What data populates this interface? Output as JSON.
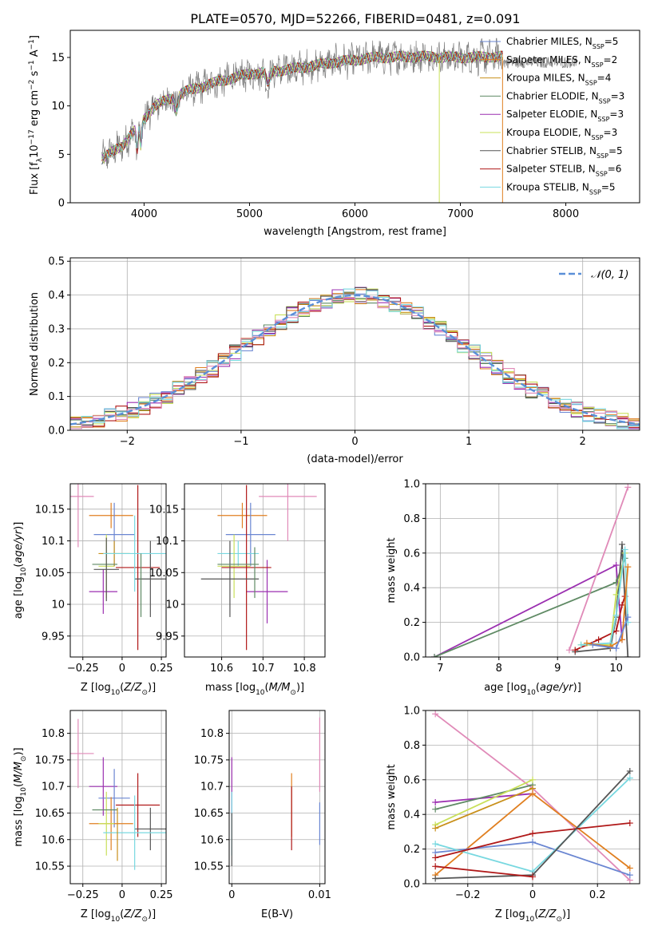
{
  "figure": {
    "title": "PLATE=0570, MJD=52266, FIBERID=0481, z=0.091"
  },
  "colors": {
    "chabrier_miles": "#6a86d2",
    "salpeter_miles": "#e07f20",
    "kroupa_miles": "#c8901a",
    "chabrier_elodie": "#5f8a64",
    "salpeter_elodie": "#9b2fb0",
    "kroupa_elodie": "#c9e05a",
    "chabrier_stelib": "#555555",
    "salpeter_stelib": "#b01818",
    "kroupa_stelib": "#78d8e0",
    "normal": "#5a8fd8",
    "salpeter_extra": "#e08ab8",
    "data": "#808080"
  },
  "chart_data": [
    {
      "id": "spectrum",
      "type": "line",
      "title": "PLATE=0570, MJD=52266, FIBERID=0481, z=0.091",
      "xlabel": "wavelength [Angstrom, rest frame]",
      "ylabel": "Flux [f_λ 10^-17 erg cm^-2 s^-1 A^-1]",
      "xlim": [
        3300,
        8700
      ],
      "ylim": [
        0,
        17.8
      ],
      "xticks": [
        4000,
        5000,
        6000,
        7000,
        8000
      ],
      "yticks": [
        0,
        5,
        10,
        15
      ],
      "grid": false,
      "legend_position": "right",
      "legend": [
        {
          "base": "Chabrier MILES, N",
          "sub": "SSP",
          "tail": "=5",
          "color_key": "chabrier_miles"
        },
        {
          "base": "Salpeter MILES, N",
          "sub": "SSP",
          "tail": "=2",
          "color_key": "salpeter_miles"
        },
        {
          "base": "Kroupa MILES, N",
          "sub": "SSP",
          "tail": "=4",
          "color_key": "kroupa_miles"
        },
        {
          "base": "Chabrier ELODIE, N",
          "sub": "SSP",
          "tail": "=3",
          "color_key": "chabrier_elodie"
        },
        {
          "base": "Salpeter ELODIE, N",
          "sub": "SSP",
          "tail": "=3",
          "color_key": "salpeter_elodie"
        },
        {
          "base": "Kroupa ELODIE, N",
          "sub": "SSP",
          "tail": "=3",
          "color_key": "kroupa_elodie"
        },
        {
          "base": "Chabrier STELIB, N",
          "sub": "SSP",
          "tail": "=5",
          "color_key": "chabrier_stelib"
        },
        {
          "base": "Salpeter STELIB, N",
          "sub": "SSP",
          "tail": "=6",
          "color_key": "salpeter_stelib"
        },
        {
          "base": "Kroupa STELIB, N",
          "sub": "SSP",
          "tail": "=5",
          "color_key": "kroupa_stelib"
        }
      ],
      "continuum": [
        [
          3600,
          4.5
        ],
        [
          3800,
          6.0
        ],
        [
          3950,
          8.0
        ],
        [
          4100,
          10.0
        ],
        [
          4400,
          11.5
        ],
        [
          4700,
          12.5
        ],
        [
          5000,
          13.3
        ],
        [
          5400,
          13.8
        ],
        [
          5800,
          14.5
        ],
        [
          6200,
          15.0
        ],
        [
          6600,
          15.1
        ],
        [
          7000,
          15.0
        ],
        [
          7400,
          15.1
        ]
      ],
      "data_range": [
        3600,
        8100
      ],
      "model_range": [
        3600,
        7400
      ],
      "dips": [
        [
          6800,
          0
        ],
        [
          7400,
          0
        ]
      ]
    },
    {
      "id": "residuals",
      "type": "line",
      "xlabel": "(data-model)/error",
      "ylabel": "Normed distribution",
      "xlim": [
        -2.5,
        2.5
      ],
      "ylim": [
        0,
        0.51
      ],
      "xticks": [
        -2,
        -1,
        0,
        1,
        2
      ],
      "yticks": [
        0.0,
        0.1,
        0.2,
        0.3,
        0.4,
        0.5
      ],
      "grid": true,
      "legend_position": "upper right",
      "normal_label": "𝒩(0, 1)",
      "bin_width": 0.1,
      "series_color_keys": [
        "chabrier_miles",
        "salpeter_miles",
        "kroupa_miles",
        "chabrier_elodie",
        "salpeter_elodie",
        "kroupa_elodie",
        "chabrier_stelib",
        "salpeter_stelib",
        "kroupa_stelib",
        "salpeter_extra"
      ]
    },
    {
      "id": "age_vs_Z",
      "type": "scatter",
      "xlabel": "Z [log10(Z/Z⊙)]",
      "ylabel": "age [log10(age/yr)]",
      "xlim": [
        -0.33,
        0.28
      ],
      "ylim": [
        9.917,
        10.19
      ],
      "xticks": [
        -0.25,
        0.0,
        0.25
      ],
      "yticks": [
        9.95,
        10.0,
        10.05,
        10.1,
        10.15
      ],
      "grid": true,
      "points": [
        {
          "x": -0.28,
          "y": 10.17,
          "xerr": 0.1,
          "yerr": 0.08,
          "color_key": "salpeter_extra"
        },
        {
          "x": -0.07,
          "y": 10.14,
          "xerr": 0.14,
          "yerr": 0.02,
          "color_key": "salpeter_miles"
        },
        {
          "x": -0.05,
          "y": 10.11,
          "xerr": 0.13,
          "yerr": 0.05,
          "color_key": "chabrier_miles"
        },
        {
          "x": -0.1,
          "y": 10.06,
          "xerr": 0.05,
          "yerr": 0.05,
          "color_key": "kroupa_elodie"
        },
        {
          "x": -0.12,
          "y": 10.02,
          "xerr": 0.09,
          "yerr": 0.035,
          "color_key": "salpeter_elodie"
        },
        {
          "x": -0.05,
          "y": 10.08,
          "xerr": 0.1,
          "yerr": 0.02,
          "color_key": "kroupa_miles"
        },
        {
          "x": -0.11,
          "y": 10.063,
          "xerr": 0.08,
          "yerr": 0.0,
          "color_key": "chabrier_elodie"
        },
        {
          "x": -0.1,
          "y": 10.055,
          "xerr": 0.08,
          "yerr": 0.05,
          "color_key": "chabrier_stelib"
        },
        {
          "x": 0.1,
          "y": 10.058,
          "xerr": 0.14,
          "yerr": 0.13,
          "color_key": "salpeter_stelib"
        },
        {
          "x": 0.18,
          "y": 10.04,
          "xerr": 0.1,
          "yerr": 0.06,
          "color_key": "chabrier_stelib"
        },
        {
          "x": 0.08,
          "y": 10.08,
          "xerr": 0.2,
          "yerr": 0.06,
          "color_key": "kroupa_stelib"
        },
        {
          "x": 0.12,
          "y": 10.03,
          "xerr": 0.0,
          "yerr": 0.05,
          "color_key": "chabrier_elodie"
        }
      ]
    },
    {
      "id": "age_vs_mass",
      "type": "scatter",
      "xlabel": "mass [log10(M/M⊙)]",
      "ylabel": "",
      "xlim": [
        10.51,
        10.85
      ],
      "ylim": [
        9.917,
        10.19
      ],
      "xticks": [
        10.6,
        10.7,
        10.8
      ],
      "yticks": [
        9.95,
        10.0,
        10.05,
        10.1,
        10.15
      ],
      "grid": true,
      "points": [
        {
          "x": 10.76,
          "y": 10.17,
          "xerr": 0.07,
          "yerr": 0.07,
          "color_key": "salpeter_extra"
        },
        {
          "x": 10.65,
          "y": 10.14,
          "xerr": 0.06,
          "yerr": 0.02,
          "color_key": "salpeter_miles"
        },
        {
          "x": 10.67,
          "y": 10.11,
          "xerr": 0.06,
          "yerr": 0.05,
          "color_key": "chabrier_miles"
        },
        {
          "x": 10.64,
          "y": 10.08,
          "xerr": 0.05,
          "yerr": 0.02,
          "color_key": "kroupa_stelib"
        },
        {
          "x": 10.63,
          "y": 10.06,
          "xerr": 0.04,
          "yerr": 0.05,
          "color_key": "kroupa_elodie"
        },
        {
          "x": 10.71,
          "y": 10.02,
          "xerr": 0.05,
          "yerr": 0.05,
          "color_key": "salpeter_elodie"
        },
        {
          "x": 10.66,
          "y": 10.058,
          "xerr": 0.06,
          "yerr": 0.13,
          "color_key": "salpeter_stelib"
        },
        {
          "x": 10.62,
          "y": 10.04,
          "xerr": 0.07,
          "yerr": 0.06,
          "color_key": "chabrier_stelib"
        },
        {
          "x": 10.64,
          "y": 10.063,
          "xerr": 0.05,
          "yerr": 0.0,
          "color_key": "chabrier_elodie"
        },
        {
          "x": 10.68,
          "y": 10.05,
          "xerr": 0.0,
          "yerr": 0.04,
          "color_key": "chabrier_elodie"
        }
      ]
    },
    {
      "id": "weight_vs_age",
      "type": "line",
      "xlabel": "age [log10(age/yr)]",
      "ylabel": "mass weight",
      "xlim": [
        6.75,
        10.4
      ],
      "ylim": [
        0,
        1.0
      ],
      "xticks": [
        7,
        8,
        9,
        10
      ],
      "yticks": [
        0.0,
        0.2,
        0.4,
        0.6,
        0.8,
        1.0
      ],
      "grid": true,
      "series": [
        {
          "color_key": "salpeter_elodie",
          "x": [
            6.9,
            10.0,
            10.1
          ],
          "y": [
            0.0,
            0.53,
            0.1
          ]
        },
        {
          "color_key": "chabrier_elodie",
          "x": [
            6.9,
            10.0,
            10.15
          ],
          "y": [
            0.0,
            0.43,
            0.57
          ]
        },
        {
          "color_key": "salpeter_extra",
          "x": [
            9.2,
            10.2
          ],
          "y": [
            0.04,
            0.98
          ]
        },
        {
          "color_key": "chabrier_stelib",
          "x": [
            9.3,
            9.9,
            10.0,
            10.1,
            10.2
          ],
          "y": [
            0.03,
            0.05,
            0.23,
            0.65,
            0.0
          ]
        },
        {
          "color_key": "salpeter_stelib",
          "x": [
            9.3,
            9.7,
            10.0,
            10.1,
            10.15
          ],
          "y": [
            0.04,
            0.1,
            0.15,
            0.3,
            0.35
          ]
        },
        {
          "color_key": "kroupa_elodie",
          "x": [
            9.4,
            9.9,
            10.0,
            10.15
          ],
          "y": [
            0.07,
            0.07,
            0.36,
            0.6
          ]
        },
        {
          "color_key": "kroupa_stelib",
          "x": [
            9.4,
            9.9,
            10.0,
            10.15,
            10.2
          ],
          "y": [
            0.07,
            0.08,
            0.24,
            0.62,
            0.2
          ]
        },
        {
          "color_key": "salpeter_miles",
          "x": [
            9.5,
            9.9,
            10.1,
            10.2
          ],
          "y": [
            0.08,
            0.06,
            0.1,
            0.52
          ]
        },
        {
          "color_key": "chabrier_miles",
          "x": [
            9.6,
            10.0,
            10.2
          ],
          "y": [
            0.07,
            0.05,
            0.23
          ]
        }
      ]
    },
    {
      "id": "mass_vs_Z",
      "type": "scatter",
      "xlabel": "Z [log10(Z/Z⊙)]",
      "ylabel": "mass [log10(M/M⊙)]",
      "xlim": [
        -0.33,
        0.28
      ],
      "ylim": [
        10.517,
        10.843
      ],
      "xticks": [
        -0.25,
        0.0,
        0.25
      ],
      "yticks": [
        10.55,
        10.6,
        10.65,
        10.7,
        10.75,
        10.8
      ],
      "grid": true,
      "points": [
        {
          "x": -0.28,
          "y": 10.762,
          "xerr": 0.1,
          "yerr": 0.065,
          "color_key": "salpeter_extra"
        },
        {
          "x": -0.12,
          "y": 10.7,
          "xerr": 0.09,
          "yerr": 0.055,
          "color_key": "salpeter_elodie"
        },
        {
          "x": -0.05,
          "y": 10.678,
          "xerr": 0.1,
          "yerr": 0.055,
          "color_key": "chabrier_miles"
        },
        {
          "x": -0.07,
          "y": 10.63,
          "xerr": 0.14,
          "yerr": 0.05,
          "color_key": "salpeter_miles"
        },
        {
          "x": -0.1,
          "y": 10.63,
          "xerr": 0.05,
          "yerr": 0.06,
          "color_key": "kroupa_elodie"
        },
        {
          "x": -0.11,
          "y": 10.656,
          "xerr": 0.08,
          "yerr": 0.0,
          "color_key": "chabrier_elodie"
        },
        {
          "x": 0.1,
          "y": 10.665,
          "xerr": 0.14,
          "yerr": 0.06,
          "color_key": "salpeter_stelib"
        },
        {
          "x": 0.18,
          "y": 10.62,
          "xerr": 0.1,
          "yerr": 0.04,
          "color_key": "chabrier_stelib"
        },
        {
          "x": 0.08,
          "y": 10.613,
          "xerr": 0.2,
          "yerr": 0.07,
          "color_key": "kroupa_stelib"
        },
        {
          "x": -0.03,
          "y": 10.61,
          "xerr": 0.0,
          "yerr": 0.05,
          "color_key": "kroupa_miles"
        }
      ]
    },
    {
      "id": "mass_vs_EBV",
      "type": "scatter",
      "xlabel": "E(B-V)",
      "ylabel": "",
      "xlim": [
        -0.0003,
        0.0106
      ],
      "ylim": [
        10.517,
        10.843
      ],
      "xticks": [
        0.0,
        0.01
      ],
      "yticks": [
        10.55,
        10.6,
        10.65,
        10.7,
        10.75,
        10.8
      ],
      "grid": true,
      "points": [
        {
          "x": 0.0,
          "y": 10.7,
          "xerr": 0.0,
          "yerr": 0.055,
          "color_key": "salpeter_elodie"
        },
        {
          "x": 0.0,
          "y": 10.63,
          "xerr": 0.0,
          "yerr": 0.06,
          "color_key": "kroupa_stelib"
        },
        {
          "x": 0.0,
          "y": 10.6,
          "xerr": 0.0,
          "yerr": 0.05,
          "color_key": "chabrier_stelib"
        },
        {
          "x": 0.0068,
          "y": 10.665,
          "xerr": 0.0,
          "yerr": 0.06,
          "color_key": "salpeter_miles"
        },
        {
          "x": 0.0068,
          "y": 10.64,
          "xerr": 0.0,
          "yerr": 0.06,
          "color_key": "salpeter_stelib"
        },
        {
          "x": 0.01,
          "y": 10.76,
          "xerr": 0.0,
          "yerr": 0.07,
          "color_key": "salpeter_extra"
        },
        {
          "x": 0.01,
          "y": 10.63,
          "xerr": 0.0,
          "yerr": 0.04,
          "color_key": "chabrier_miles"
        }
      ]
    },
    {
      "id": "weight_vs_Z",
      "type": "line",
      "xlabel": "Z [log10(Z/Z⊙)]",
      "ylabel": "mass weight",
      "xlim": [
        -0.33,
        0.33
      ],
      "ylim": [
        0,
        1.0
      ],
      "xticks": [
        -0.2,
        0.0,
        0.2
      ],
      "yticks": [
        0.0,
        0.2,
        0.4,
        0.6,
        0.8,
        1.0
      ],
      "grid": true,
      "series": [
        {
          "color_key": "salpeter_extra",
          "x": [
            -0.3,
            0.0,
            0.3
          ],
          "y": [
            0.98,
            0.55,
            0.02
          ]
        },
        {
          "color_key": "salpeter_elodie",
          "x": [
            -0.3,
            0.0
          ],
          "y": [
            0.47,
            0.52
          ]
        },
        {
          "color_key": "chabrier_elodie",
          "x": [
            -0.3,
            0.0
          ],
          "y": [
            0.43,
            0.57
          ]
        },
        {
          "color_key": "kroupa_elodie",
          "x": [
            -0.3,
            0.0
          ],
          "y": [
            0.34,
            0.6
          ]
        },
        {
          "color_key": "kroupa_miles",
          "x": [
            -0.3,
            0.0
          ],
          "y": [
            0.32,
            0.55
          ]
        },
        {
          "color_key": "salpeter_miles",
          "x": [
            -0.3,
            0.0,
            0.3
          ],
          "y": [
            0.05,
            0.52,
            0.09
          ]
        },
        {
          "color_key": "chabrier_miles",
          "x": [
            -0.3,
            0.0,
            0.3
          ],
          "y": [
            0.18,
            0.24,
            0.05
          ]
        },
        {
          "color_key": "kroupa_stelib",
          "x": [
            -0.3,
            0.0,
            0.3
          ],
          "y": [
            0.23,
            0.07,
            0.61
          ]
        },
        {
          "color_key": "salpeter_stelib",
          "x": [
            -0.3,
            0.0,
            0.3
          ],
          "y": [
            0.15,
            0.29,
            0.35
          ]
        },
        {
          "color_key": "chabrier_stelib",
          "x": [
            -0.3,
            0.0,
            0.3
          ],
          "y": [
            0.03,
            0.05,
            0.65
          ]
        },
        {
          "color_key": "salpeter_stelib",
          "x": [
            -0.3,
            0.0
          ],
          "y": [
            0.1,
            0.04
          ]
        }
      ]
    }
  ]
}
